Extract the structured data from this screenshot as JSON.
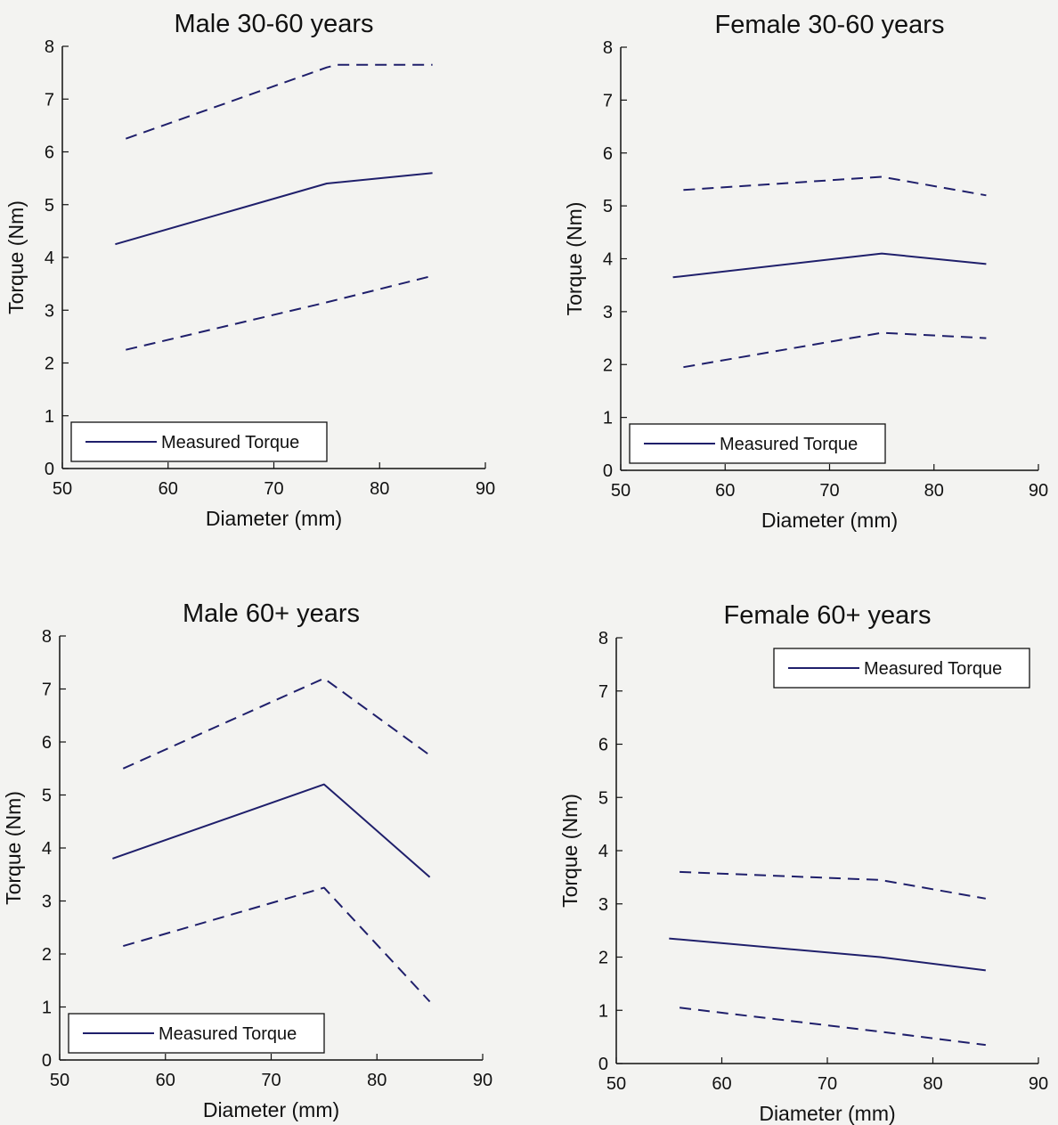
{
  "figure": {
    "line_color": "#1f1f6b",
    "axis_color": "#111111"
  },
  "chart_data": [
    {
      "type": "line",
      "title": "Male 30-60 years",
      "xlabel": "Diameter (mm)",
      "ylabel": "Torque (Nm)",
      "xlim": [
        50,
        90
      ],
      "ylim": [
        0,
        8
      ],
      "xticks": [
        50,
        60,
        70,
        80,
        90
      ],
      "yticks": [
        0,
        1,
        2,
        3,
        4,
        5,
        6,
        7,
        8
      ],
      "legend": {
        "label": "Measured Torque",
        "position": "bottom-left"
      },
      "series": [
        {
          "name": "Measured Torque",
          "style": "solid",
          "x": [
            55,
            75,
            85
          ],
          "y": [
            4.25,
            5.4,
            5.6
          ]
        },
        {
          "style": "dashed",
          "x": [
            56,
            75,
            76,
            85
          ],
          "y": [
            6.25,
            7.6,
            7.65,
            7.65
          ]
        },
        {
          "style": "dashed",
          "x": [
            56,
            75,
            85
          ],
          "y": [
            2.25,
            3.15,
            3.65
          ]
        }
      ]
    },
    {
      "type": "line",
      "title": "Female 30-60 years",
      "xlabel": "Diameter (mm)",
      "ylabel": "Torque (Nm)",
      "xlim": [
        50,
        90
      ],
      "ylim": [
        0,
        8
      ],
      "xticks": [
        50,
        60,
        70,
        80,
        90
      ],
      "yticks": [
        0,
        1,
        2,
        3,
        4,
        5,
        6,
        7,
        8
      ],
      "legend": {
        "label": "Measured Torque",
        "position": "bottom-left"
      },
      "series": [
        {
          "name": "Measured Torque",
          "style": "solid",
          "x": [
            55,
            75,
            85
          ],
          "y": [
            3.65,
            4.1,
            3.9
          ]
        },
        {
          "style": "dashed",
          "x": [
            56,
            75,
            85
          ],
          "y": [
            5.3,
            5.55,
            5.2
          ]
        },
        {
          "style": "dashed",
          "x": [
            56,
            75,
            85
          ],
          "y": [
            1.95,
            2.6,
            2.5
          ]
        }
      ]
    },
    {
      "type": "line",
      "title": "Male 60+ years",
      "xlabel": "Diameter (mm)",
      "ylabel": "Torque (Nm)",
      "xlim": [
        50,
        90
      ],
      "ylim": [
        0,
        8
      ],
      "xticks": [
        50,
        60,
        70,
        80,
        90
      ],
      "yticks": [
        0,
        1,
        2,
        3,
        4,
        5,
        6,
        7,
        8
      ],
      "legend": {
        "label": "Measured Torque",
        "position": "bottom-left"
      },
      "series": [
        {
          "name": "Measured Torque",
          "style": "solid",
          "x": [
            55,
            75,
            85
          ],
          "y": [
            3.8,
            5.2,
            3.45
          ]
        },
        {
          "style": "dashed",
          "x": [
            56,
            75,
            85
          ],
          "y": [
            5.5,
            7.2,
            5.75
          ]
        },
        {
          "style": "dashed",
          "x": [
            56,
            75,
            85
          ],
          "y": [
            2.15,
            3.25,
            1.1
          ]
        }
      ]
    },
    {
      "type": "line",
      "title": "Female 60+ years",
      "xlabel": "Diameter (mm)",
      "ylabel": "Torque (Nm)",
      "xlim": [
        50,
        90
      ],
      "ylim": [
        0,
        8
      ],
      "xticks": [
        50,
        60,
        70,
        80,
        90
      ],
      "yticks": [
        0,
        1,
        2,
        3,
        4,
        5,
        6,
        7,
        8
      ],
      "legend": {
        "label": "Measured Torque",
        "position": "top-right"
      },
      "series": [
        {
          "name": "Measured Torque",
          "style": "solid",
          "x": [
            55,
            75,
            85
          ],
          "y": [
            2.35,
            2.0,
            1.75
          ]
        },
        {
          "style": "dashed",
          "x": [
            56,
            75,
            85
          ],
          "y": [
            3.6,
            3.45,
            3.1
          ]
        },
        {
          "style": "dashed",
          "x": [
            56,
            75,
            85
          ],
          "y": [
            1.05,
            0.6,
            0.35
          ]
        }
      ]
    }
  ]
}
